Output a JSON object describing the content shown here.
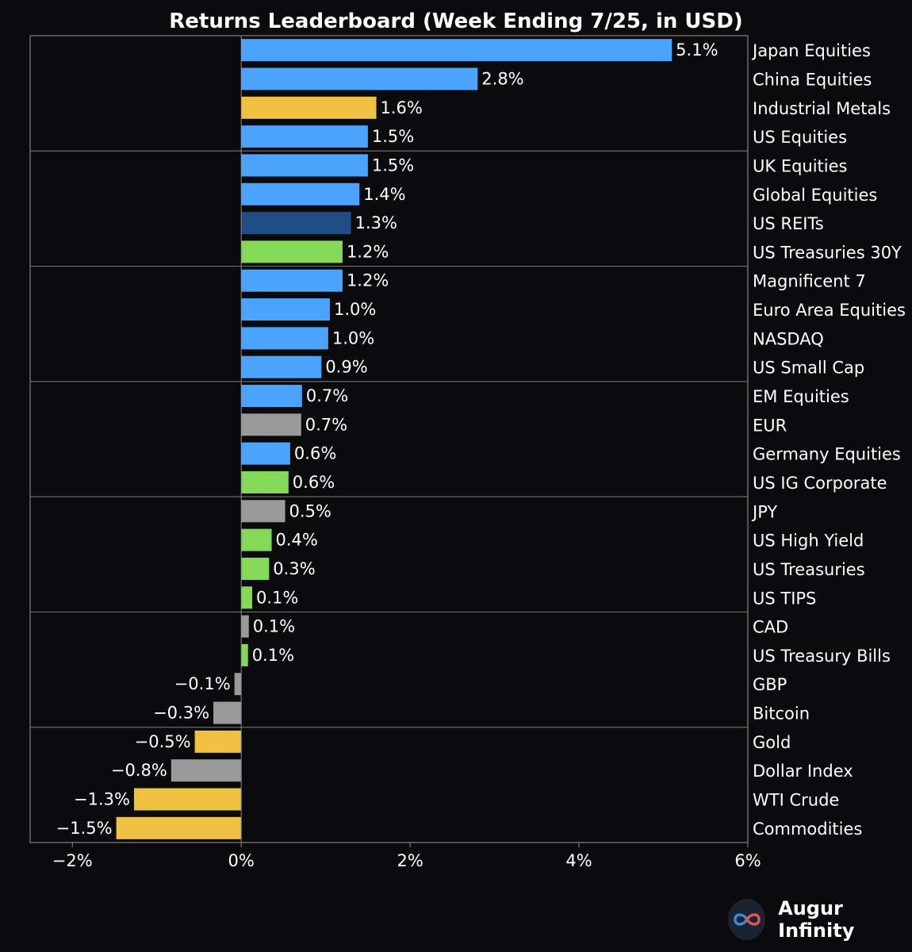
{
  "chart_data": {
    "type": "bar",
    "orientation": "horizontal",
    "title": "Returns Leaderboard (Week Ending 7/25, in USD)",
    "xlabel": "",
    "ylabel": "",
    "xlim": [
      -2.5,
      6
    ],
    "xticks": [
      -2,
      0,
      2,
      4,
      6
    ],
    "xtick_labels": [
      "−2%",
      "0%",
      "2%",
      "4%",
      "6%"
    ],
    "grid": false,
    "group_size": 4,
    "colors": {
      "equity": "#4aa3ff",
      "commodity": "#f0c040",
      "reit": "#1f4d86",
      "bond": "#84d957",
      "fx": "#9a9a9a",
      "background": "#0b0b0d",
      "frame": "#6b6b6b"
    },
    "bars": [
      {
        "category": "Japan Equities",
        "value": 5.1,
        "label": "5.1%",
        "group": "equity"
      },
      {
        "category": "China Equities",
        "value": 2.8,
        "label": "2.8%",
        "group": "equity"
      },
      {
        "category": "Industrial Metals",
        "value": 1.6,
        "label": "1.6%",
        "group": "commodity"
      },
      {
        "category": "US Equities",
        "value": 1.5,
        "label": "1.5%",
        "group": "equity"
      },
      {
        "category": "UK Equities",
        "value": 1.5,
        "label": "1.5%",
        "group": "equity"
      },
      {
        "category": "Global Equities",
        "value": 1.4,
        "label": "1.4%",
        "group": "equity"
      },
      {
        "category": "US REITs",
        "value": 1.3,
        "label": "1.3%",
        "group": "reit"
      },
      {
        "category": "US Treasuries 30Y",
        "value": 1.2,
        "label": "1.2%",
        "group": "bond"
      },
      {
        "category": "Magnificent 7",
        "value": 1.2,
        "label": "1.2%",
        "group": "equity"
      },
      {
        "category": "Euro Area Equities",
        "value": 1.05,
        "label": "1.0%",
        "group": "equity"
      },
      {
        "category": "NASDAQ",
        "value": 1.03,
        "label": "1.0%",
        "group": "equity"
      },
      {
        "category": "US Small Cap",
        "value": 0.95,
        "label": "0.9%",
        "group": "equity"
      },
      {
        "category": "EM Equities",
        "value": 0.72,
        "label": "0.7%",
        "group": "equity"
      },
      {
        "category": "EUR",
        "value": 0.71,
        "label": "0.7%",
        "group": "fx"
      },
      {
        "category": "Germany Equities",
        "value": 0.58,
        "label": "0.6%",
        "group": "equity"
      },
      {
        "category": "US IG Corporate",
        "value": 0.56,
        "label": "0.6%",
        "group": "bond"
      },
      {
        "category": "JPY",
        "value": 0.52,
        "label": "0.5%",
        "group": "fx"
      },
      {
        "category": "US High Yield",
        "value": 0.36,
        "label": "0.4%",
        "group": "bond"
      },
      {
        "category": "US Treasuries",
        "value": 0.33,
        "label": "0.3%",
        "group": "bond"
      },
      {
        "category": "US TIPS",
        "value": 0.13,
        "label": "0.1%",
        "group": "bond"
      },
      {
        "category": "CAD",
        "value": 0.09,
        "label": "0.1%",
        "group": "fx"
      },
      {
        "category": "US Treasury Bills",
        "value": 0.08,
        "label": "0.1%",
        "group": "bond"
      },
      {
        "category": "GBP",
        "value": -0.08,
        "label": "−0.1%",
        "group": "fx"
      },
      {
        "category": "Bitcoin",
        "value": -0.33,
        "label": "−0.3%",
        "group": "fx"
      },
      {
        "category": "Gold",
        "value": -0.55,
        "label": "−0.5%",
        "group": "commodity"
      },
      {
        "category": "Dollar Index",
        "value": -0.83,
        "label": "−0.8%",
        "group": "fx"
      },
      {
        "category": "WTI Crude",
        "value": -1.27,
        "label": "−1.3%",
        "group": "commodity"
      },
      {
        "category": "Commodities",
        "value": -1.48,
        "label": "−1.5%",
        "group": "commodity"
      }
    ]
  },
  "branding": {
    "name": "Augur Infinity",
    "logo_icon": "infinity-icon"
  }
}
